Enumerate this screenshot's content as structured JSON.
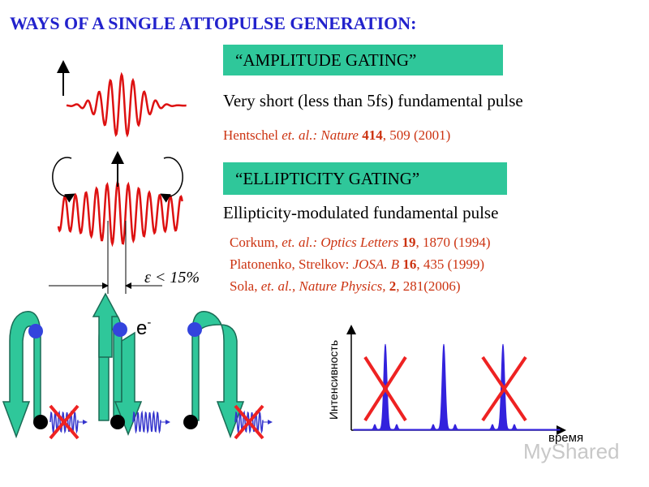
{
  "title": "WAYS OF A SINGLE ATTOPULSE GENERATION:",
  "amplitude": {
    "label": "“AMPLITUDE GATING”",
    "text": "Very short (less than 5fs) fundamental pulse",
    "refs": [
      [
        "Hentschel ",
        "et. al.: Nature ",
        "414",
        ", 509 (2001)"
      ]
    ]
  },
  "ellipticity": {
    "label": "“ELLIPTICITY GATING”",
    "text": "Ellipticity-modulated fundamental pulse",
    "refs": [
      [
        "Corkum, ",
        "et. al.: Optics Letters ",
        "19",
        ", 1870 (1994)"
      ],
      [
        "Platonenko, Strelkov: ",
        "JOSA. B ",
        "16",
        ", 435 (1999)"
      ],
      [
        "Sola, ",
        "et. al., Nature Physics, ",
        "2",
        ", 281(2006)"
      ]
    ],
    "threshold": "ε < 15%"
  },
  "electron": {
    "base": "e",
    "sup": "-"
  },
  "spectrum": {
    "ylabel": "Интенсивность",
    "xlabel": "время"
  },
  "watermark": "MyShared"
}
